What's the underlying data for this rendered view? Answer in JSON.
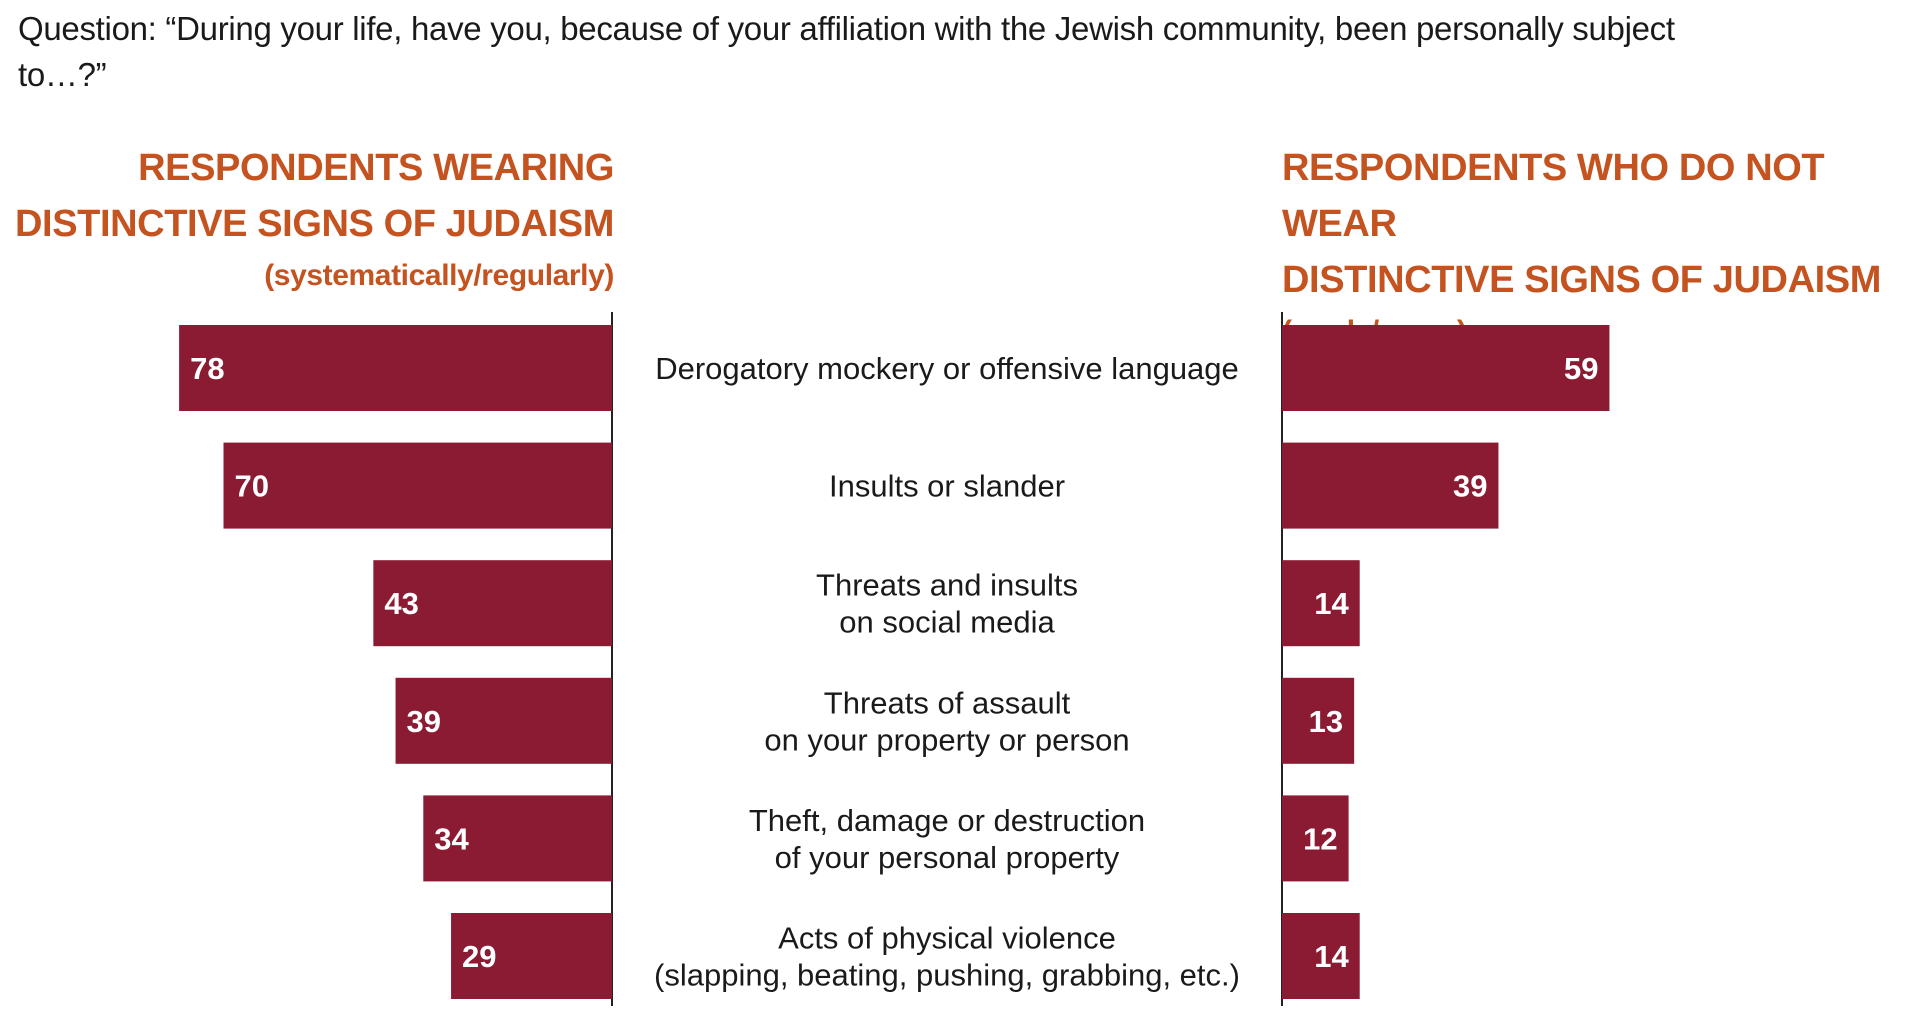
{
  "question": "Question: “During your life, have you, because of your affiliation with the Jewish community, been personally subject to…?”",
  "left_panel": {
    "title_line1": "RESPONDENTS WEARING",
    "title_line2": "DISTINCTIVE SIGNS OF JUDAISM",
    "subtitle": "(systematically/regularly)"
  },
  "right_panel": {
    "title_line1": "RESPONDENTS WHO DO NOT WEAR",
    "title_line2": "DISTINCTIVE SIGNS OF JUDAISM",
    "subtitle": "(rarely/never)"
  },
  "colors": {
    "bar": "#8b1a33",
    "heading": "#c5531f",
    "text": "#1a1a1a",
    "axis": "#222222"
  },
  "chart_data": {
    "type": "bar",
    "orientation": "horizontal-diverging",
    "title": "Question: “During your life, have you, because of your affiliation with the Jewish community, been personally subject to…?”",
    "categories": [
      [
        "Derogatory mockery or offensive language"
      ],
      [
        "Insults or slander"
      ],
      [
        "Threats and insults",
        "on social media"
      ],
      [
        "Threats of assault",
        "on your property or person"
      ],
      [
        "Theft, damage or destruction",
        "of your personal property"
      ],
      [
        "Acts of physical violence",
        "(slapping, beating, pushing, grabbing, etc.)"
      ]
    ],
    "series": [
      {
        "name": "Respondents wearing distinctive signs of Judaism (systematically/regularly)",
        "values": [
          78,
          70,
          43,
          39,
          34,
          29
        ]
      },
      {
        "name": "Respondents who do not wear distinctive signs of Judaism (rarely/never)",
        "values": [
          59,
          39,
          14,
          13,
          12,
          14
        ]
      }
    ],
    "xlim": [
      0,
      100
    ],
    "grid": false,
    "legend": "none"
  }
}
